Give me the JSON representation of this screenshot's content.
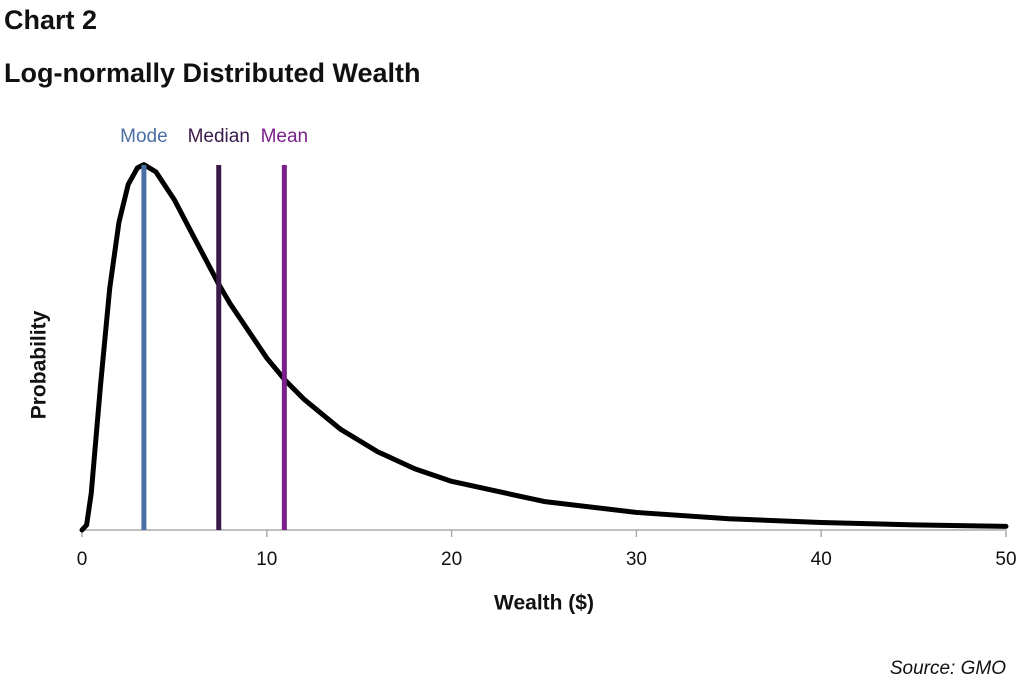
{
  "chart_data": {
    "type": "line",
    "title": "Chart 2",
    "subtitle": "Log-normally Distributed Wealth",
    "x_label": "Wealth ($)",
    "y_label": "Probability",
    "source": "Source: GMO",
    "xlim": [
      0,
      50
    ],
    "xticks": [
      0,
      10,
      20,
      30,
      40,
      50
    ],
    "ylim": [
      0,
      0.09
    ],
    "series": [
      {
        "color": "#000000",
        "x": [
          0,
          0.25,
          0.5,
          1,
          1.5,
          2,
          2.5,
          3,
          3.35,
          4,
          5,
          6,
          7.4,
          8,
          10,
          11,
          12,
          14,
          16,
          18,
          20,
          25,
          30,
          35,
          40,
          45,
          50
        ],
        "values": [
          0,
          0.00125,
          0.00906,
          0.0356,
          0.0596,
          0.0759,
          0.0852,
          0.0893,
          0.0901,
          0.0883,
          0.0814,
          0.0727,
          0.0606,
          0.0559,
          0.0424,
          0.0369,
          0.0323,
          0.0248,
          0.0193,
          0.0151,
          0.012,
          0.00703,
          0.00433,
          0.00278,
          0.00185,
          0.00127,
          0.00089
        ]
      }
    ],
    "vlines": [
      {
        "name": "Mode",
        "x": 3.35,
        "color": "#4a6fa5"
      },
      {
        "name": "Median",
        "x": 7.4,
        "color": "#3a1a4a"
      },
      {
        "name": "Mean",
        "x": 10.95,
        "color": "#7a1f8a"
      }
    ]
  }
}
